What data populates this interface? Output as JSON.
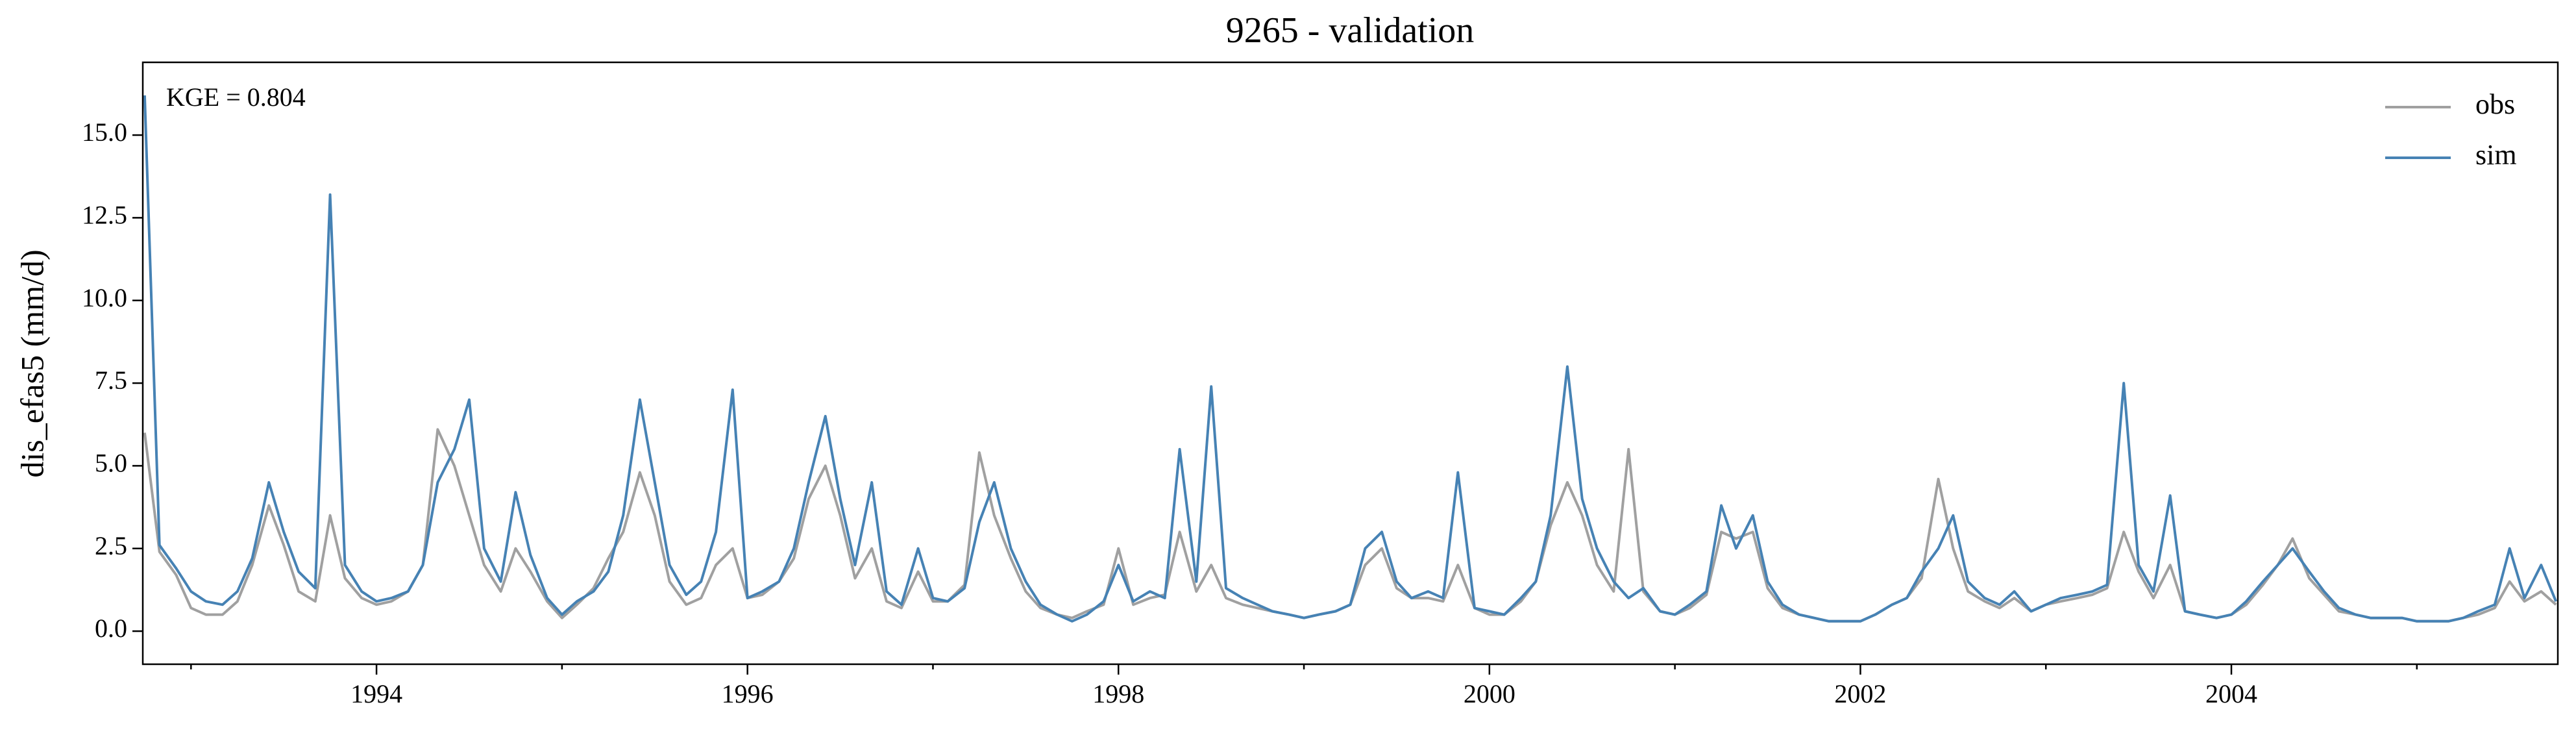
{
  "chart_data": {
    "type": "line",
    "title": "9265 - validation",
    "ylabel": "dis_efas5 (mm/d)",
    "annotation": "KGE = 0.804",
    "legend": "upper right",
    "grid": false,
    "xlim": [
      1992.74,
      2005.76
    ],
    "xticks": [
      1994,
      1996,
      1998,
      2000,
      2002,
      2004
    ],
    "xticks_minor": [
      1993,
      1995,
      1997,
      1999,
      2001,
      2003,
      2005
    ],
    "ylim": [
      -1,
      17.2
    ],
    "yticks": [
      {
        "value": 0,
        "label": "0.0"
      },
      2.5,
      {
        "value": 5,
        "label": "5.0"
      },
      7.5,
      {
        "value": 10,
        "label": "10.0"
      },
      12.5,
      {
        "value": 15,
        "label": "15.0"
      }
    ],
    "x": [
      1992.75,
      1992.83,
      1992.92,
      1993,
      1993.08,
      1993.17,
      1993.25,
      1993.33,
      1993.42,
      1993.5,
      1993.58,
      1993.67,
      1993.75,
      1993.83,
      1993.92,
      1994,
      1994.08,
      1994.17,
      1994.25,
      1994.33,
      1994.42,
      1994.5,
      1994.58,
      1994.67,
      1994.75,
      1994.83,
      1994.92,
      1995,
      1995.08,
      1995.17,
      1995.25,
      1995.33,
      1995.42,
      1995.5,
      1995.58,
      1995.67,
      1995.75,
      1995.83,
      1995.92,
      1996,
      1996.08,
      1996.17,
      1996.25,
      1996.33,
      1996.42,
      1996.5,
      1996.58,
      1996.67,
      1996.75,
      1996.83,
      1996.92,
      1997,
      1997.08,
      1997.17,
      1997.25,
      1997.33,
      1997.42,
      1997.5,
      1997.58,
      1997.67,
      1997.75,
      1997.83,
      1997.92,
      1998,
      1998.08,
      1998.17,
      1998.25,
      1998.33,
      1998.42,
      1998.5,
      1998.58,
      1998.67,
      1998.75,
      1998.83,
      1998.92,
      1999,
      1999.08,
      1999.17,
      1999.25,
      1999.33,
      1999.42,
      1999.5,
      1999.58,
      1999.67,
      1999.75,
      1999.83,
      1999.92,
      2000,
      2000.08,
      2000.17,
      2000.25,
      2000.33,
      2000.42,
      2000.5,
      2000.58,
      2000.67,
      2000.75,
      2000.83,
      2000.92,
      2001,
      2001.08,
      2001.17,
      2001.25,
      2001.33,
      2001.42,
      2001.5,
      2001.58,
      2001.67,
      2001.75,
      2001.83,
      2001.92,
      2002,
      2002.08,
      2002.17,
      2002.25,
      2002.33,
      2002.42,
      2002.5,
      2002.58,
      2002.67,
      2002.75,
      2002.83,
      2002.92,
      2003,
      2003.08,
      2003.17,
      2003.25,
      2003.33,
      2003.42,
      2003.5,
      2003.58,
      2003.67,
      2003.75,
      2003.83,
      2003.92,
      2004,
      2004.08,
      2004.17,
      2004.25,
      2004.33,
      2004.42,
      2004.5,
      2004.58,
      2004.67,
      2004.75,
      2004.83,
      2004.92,
      2005,
      2005.08,
      2005.17,
      2005.25,
      2005.33,
      2005.42,
      2005.5,
      2005.58,
      2005.67,
      2005.75
    ],
    "series": [
      {
        "name": "obs",
        "color": "#a0a0a0",
        "values": [
          6.0,
          2.4,
          1.7,
          0.7,
          0.5,
          0.5,
          0.9,
          2.0,
          3.8,
          2.6,
          1.2,
          0.9,
          3.5,
          1.6,
          1.0,
          0.8,
          0.9,
          1.2,
          2.0,
          6.1,
          5.0,
          3.5,
          2.0,
          1.2,
          2.5,
          1.8,
          0.9,
          0.4,
          0.8,
          1.3,
          2.2,
          3.0,
          4.8,
          3.5,
          1.5,
          0.8,
          1.0,
          2.0,
          2.5,
          1.0,
          1.1,
          1.5,
          2.2,
          4.0,
          5.0,
          3.5,
          1.6,
          2.5,
          0.9,
          0.7,
          1.8,
          0.9,
          0.9,
          1.4,
          5.4,
          3.5,
          2.2,
          1.2,
          0.7,
          0.5,
          0.4,
          0.6,
          0.8,
          2.5,
          0.8,
          1.0,
          1.1,
          3.0,
          1.2,
          2.0,
          1.0,
          0.8,
          0.7,
          0.6,
          0.5,
          0.4,
          0.5,
          0.6,
          0.8,
          2.0,
          2.5,
          1.3,
          1.0,
          1.0,
          0.9,
          2.0,
          0.7,
          0.5,
          0.5,
          0.9,
          1.5,
          3.2,
          4.5,
          3.5,
          2.0,
          1.2,
          5.5,
          1.2,
          0.6,
          0.5,
          0.7,
          1.1,
          3.0,
          2.8,
          3.0,
          1.3,
          0.7,
          0.5,
          0.4,
          0.3,
          0.3,
          0.3,
          0.5,
          0.8,
          1.0,
          1.6,
          4.6,
          2.5,
          1.2,
          0.9,
          0.7,
          1.0,
          0.6,
          0.8,
          0.9,
          1.0,
          1.1,
          1.3,
          3.0,
          1.8,
          1.0,
          2.0,
          0.6,
          0.5,
          0.4,
          0.5,
          0.8,
          1.4,
          2.0,
          2.8,
          1.6,
          1.1,
          0.6,
          0.5,
          0.4,
          0.4,
          0.4,
          0.3,
          0.3,
          0.3,
          0.4,
          0.5,
          0.7,
          1.5,
          0.9,
          1.2,
          0.8
        ]
      },
      {
        "name": "sim",
        "color": "#4682b4",
        "values": [
          16.2,
          2.6,
          1.9,
          1.2,
          0.9,
          0.8,
          1.2,
          2.2,
          4.5,
          3.0,
          1.8,
          1.3,
          13.2,
          2.0,
          1.2,
          0.9,
          1.0,
          1.2,
          2.0,
          4.5,
          5.5,
          7.0,
          2.5,
          1.5,
          4.2,
          2.3,
          1.0,
          0.5,
          0.9,
          1.2,
          1.8,
          3.5,
          7.0,
          4.5,
          2.0,
          1.1,
          1.5,
          3.0,
          7.3,
          1.0,
          1.2,
          1.5,
          2.5,
          4.5,
          6.5,
          4.0,
          2.0,
          4.5,
          1.2,
          0.8,
          2.5,
          1.0,
          0.9,
          1.3,
          3.3,
          4.5,
          2.5,
          1.5,
          0.8,
          0.5,
          0.3,
          0.5,
          0.9,
          2.0,
          0.9,
          1.2,
          1.0,
          5.5,
          1.5,
          7.4,
          1.3,
          1.0,
          0.8,
          0.6,
          0.5,
          0.4,
          0.5,
          0.6,
          0.8,
          2.5,
          3.0,
          1.5,
          1.0,
          1.2,
          1.0,
          4.8,
          0.7,
          0.6,
          0.5,
          1.0,
          1.5,
          3.5,
          8.0,
          4.0,
          2.5,
          1.5,
          1.0,
          1.3,
          0.6,
          0.5,
          0.8,
          1.2,
          3.8,
          2.5,
          3.5,
          1.5,
          0.8,
          0.5,
          0.4,
          0.3,
          0.3,
          0.3,
          0.5,
          0.8,
          1.0,
          1.8,
          2.5,
          3.5,
          1.5,
          1.0,
          0.8,
          1.2,
          0.6,
          0.8,
          1.0,
          1.1,
          1.2,
          1.4,
          7.5,
          2.0,
          1.2,
          4.1,
          0.6,
          0.5,
          0.4,
          0.5,
          0.9,
          1.5,
          2.0,
          2.5,
          1.8,
          1.2,
          0.7,
          0.5,
          0.4,
          0.4,
          0.4,
          0.3,
          0.3,
          0.3,
          0.4,
          0.6,
          0.8,
          2.5,
          1.0,
          2.0,
          0.9
        ]
      }
    ]
  }
}
